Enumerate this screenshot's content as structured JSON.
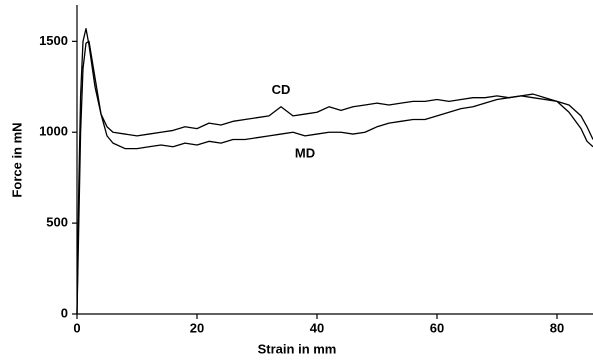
{
  "chart_data": {
    "type": "line",
    "xlabel": "Strain in mm",
    "ylabel": "Force in mN",
    "xlim": [
      0,
      86
    ],
    "ylim": [
      0,
      1700
    ],
    "xticks": [
      0,
      20,
      40,
      60,
      80
    ],
    "yticks": [
      0,
      500,
      1000,
      1500
    ],
    "grid": false,
    "series": [
      {
        "name": "CD",
        "color": "#000000",
        "x": [
          0,
          0.3,
          0.6,
          1,
          1.5,
          2,
          3,
          4,
          5,
          6,
          8,
          10,
          12,
          14,
          16,
          18,
          20,
          22,
          24,
          26,
          28,
          30,
          32,
          34,
          36,
          38,
          40,
          42,
          44,
          46,
          48,
          50,
          52,
          54,
          56,
          58,
          60,
          62,
          64,
          66,
          68,
          70,
          72,
          74,
          76,
          78,
          80,
          82,
          84,
          85,
          86
        ],
        "values": [
          0,
          700,
          1200,
          1500,
          1570,
          1480,
          1250,
          1100,
          1030,
          1000,
          990,
          980,
          990,
          1000,
          1010,
          1030,
          1020,
          1050,
          1040,
          1060,
          1070,
          1080,
          1090,
          1140,
          1090,
          1100,
          1110,
          1140,
          1120,
          1140,
          1150,
          1160,
          1150,
          1160,
          1170,
          1170,
          1180,
          1170,
          1180,
          1190,
          1190,
          1200,
          1190,
          1200,
          1190,
          1180,
          1170,
          1150,
          1090,
          1030,
          960
        ],
        "label_x": 34,
        "label_y": 1230
      },
      {
        "name": "MD",
        "color": "#000000",
        "x": [
          0,
          0.3,
          0.6,
          1,
          1.5,
          2,
          3,
          4,
          5,
          6,
          8,
          10,
          12,
          14,
          16,
          18,
          20,
          22,
          24,
          26,
          28,
          30,
          32,
          34,
          36,
          38,
          40,
          42,
          44,
          46,
          48,
          50,
          52,
          54,
          56,
          58,
          60,
          62,
          64,
          66,
          68,
          70,
          72,
          74,
          76,
          78,
          80,
          82,
          84,
          85,
          86
        ],
        "values": [
          0,
          500,
          1000,
          1350,
          1490,
          1500,
          1300,
          1100,
          980,
          940,
          910,
          910,
          920,
          930,
          920,
          940,
          930,
          950,
          940,
          960,
          960,
          970,
          980,
          990,
          1000,
          980,
          990,
          1000,
          1000,
          990,
          1000,
          1030,
          1050,
          1060,
          1070,
          1070,
          1090,
          1110,
          1130,
          1140,
          1160,
          1180,
          1190,
          1200,
          1210,
          1190,
          1170,
          1110,
          1020,
          950,
          920
        ],
        "label_x": 38,
        "label_y": 880
      }
    ]
  }
}
